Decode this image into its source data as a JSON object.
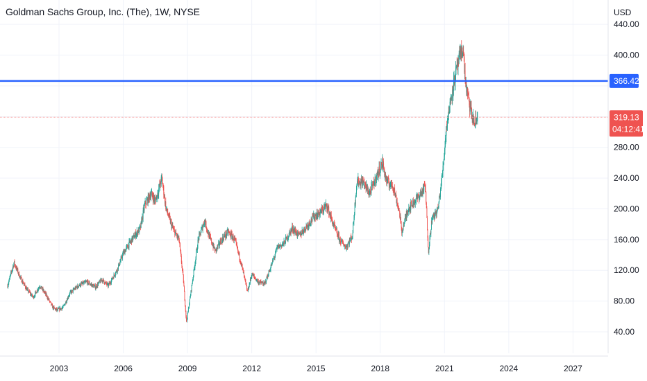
{
  "title": "Goldman Sachs Group, Inc. (The), 1W, NYSE",
  "currency": "USD",
  "colors": {
    "up": "#26a69a",
    "down": "#ef5350",
    "level_line": "#2962ff",
    "price_line": "#f7a5a5",
    "price_tag": "#ef5350",
    "grid": "#f0f3fa"
  },
  "chart_data": {
    "type": "candlestick",
    "interval": "1W",
    "exchange": "NYSE",
    "y_ticks": [
      "40.00",
      "80.00",
      "120.00",
      "160.00",
      "200.00",
      "240.00",
      "280.00",
      "400.00",
      "440.00"
    ],
    "x_ticks": [
      "2003",
      "2006",
      "2009",
      "2012",
      "2015",
      "2018",
      "2021",
      "2024",
      "2027"
    ],
    "ylim": [
      0,
      450
    ],
    "xlim": [
      2000.5,
      2028.6
    ],
    "horizontal_level": {
      "value": 366.42,
      "label": "366.42"
    },
    "last_price": {
      "value": 319.13,
      "label": "319.13",
      "countdown": "04:12:41"
    },
    "series_path": [
      [
        2000.6,
        100
      ],
      [
        2000.9,
        130
      ],
      [
        2001.2,
        110
      ],
      [
        2001.5,
        95
      ],
      [
        2001.8,
        85
      ],
      [
        2002.1,
        100
      ],
      [
        2002.4,
        88
      ],
      [
        2002.7,
        72
      ],
      [
        2002.9,
        68
      ],
      [
        2003.2,
        72
      ],
      [
        2003.5,
        90
      ],
      [
        2003.9,
        100
      ],
      [
        2004.3,
        105
      ],
      [
        2004.7,
        98
      ],
      [
        2005.0,
        108
      ],
      [
        2005.3,
        100
      ],
      [
        2005.7,
        120
      ],
      [
        2006.0,
        142
      ],
      [
        2006.4,
        160
      ],
      [
        2006.8,
        175
      ],
      [
        2007.0,
        205
      ],
      [
        2007.3,
        220
      ],
      [
        2007.5,
        210
      ],
      [
        2007.8,
        240
      ],
      [
        2008.0,
        200
      ],
      [
        2008.3,
        175
      ],
      [
        2008.6,
        160
      ],
      [
        2008.8,
        110
      ],
      [
        2008.95,
        52
      ],
      [
        2009.2,
        100
      ],
      [
        2009.5,
        160
      ],
      [
        2009.8,
        185
      ],
      [
        2010.0,
        165
      ],
      [
        2010.3,
        145
      ],
      [
        2010.6,
        160
      ],
      [
        2010.9,
        170
      ],
      [
        2011.2,
        160
      ],
      [
        2011.5,
        130
      ],
      [
        2011.8,
        92
      ],
      [
        2012.0,
        115
      ],
      [
        2012.3,
        105
      ],
      [
        2012.6,
        102
      ],
      [
        2012.9,
        125
      ],
      [
        2013.2,
        150
      ],
      [
        2013.5,
        155
      ],
      [
        2013.9,
        175
      ],
      [
        2014.2,
        165
      ],
      [
        2014.5,
        175
      ],
      [
        2014.9,
        190
      ],
      [
        2015.2,
        195
      ],
      [
        2015.5,
        205
      ],
      [
        2015.8,
        180
      ],
      [
        2016.1,
        160
      ],
      [
        2016.4,
        150
      ],
      [
        2016.7,
        165
      ],
      [
        2016.9,
        235
      ],
      [
        2017.2,
        235
      ],
      [
        2017.5,
        220
      ],
      [
        2017.8,
        240
      ],
      [
        2018.1,
        260
      ],
      [
        2018.3,
        235
      ],
      [
        2018.6,
        230
      ],
      [
        2018.9,
        195
      ],
      [
        2019.0,
        170
      ],
      [
        2019.3,
        200
      ],
      [
        2019.6,
        210
      ],
      [
        2019.9,
        220
      ],
      [
        2020.1,
        230
      ],
      [
        2020.25,
        145
      ],
      [
        2020.4,
        185
      ],
      [
        2020.7,
        200
      ],
      [
        2020.9,
        245
      ],
      [
        2021.1,
        310
      ],
      [
        2021.4,
        360
      ],
      [
        2021.6,
        385
      ],
      [
        2021.85,
        410
      ],
      [
        2022.0,
        360
      ],
      [
        2022.2,
        330
      ],
      [
        2022.4,
        310
      ],
      [
        2022.55,
        320
      ]
    ]
  }
}
